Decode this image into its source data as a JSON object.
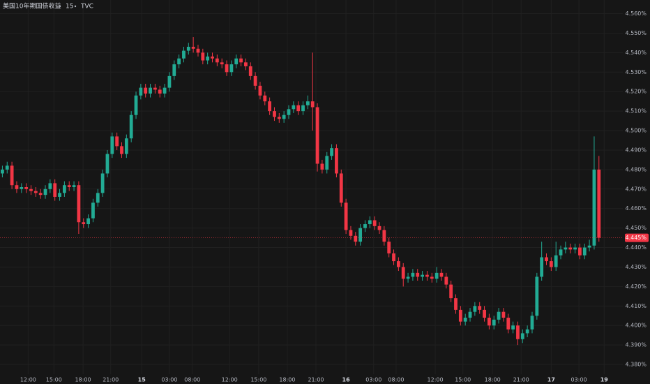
{
  "chart_data": {
    "type": "candlestick",
    "title": "美国10年期国债收益",
    "interval": "15",
    "source": "TVC",
    "up_color": "#22ab94",
    "down_color": "#f23645",
    "grid": true,
    "xlim": [
      -0.5,
      130
    ],
    "ylim": [
      4.375,
      4.567
    ],
    "xticks": [
      {
        "value": 5.4,
        "label": "12:00"
      },
      {
        "value": 10.8,
        "label": "15:00"
      },
      {
        "value": 16.9,
        "label": "18:00"
      },
      {
        "value": 22.7,
        "label": "21:00"
      },
      {
        "value": 29.2,
        "label": "15"
      },
      {
        "value": 35.0,
        "label": "03:00"
      },
      {
        "value": 39.8,
        "label": "08:00"
      },
      {
        "value": 47.6,
        "label": "12:00"
      },
      {
        "value": 53.7,
        "label": "15:00"
      },
      {
        "value": 59.7,
        "label": "18:00"
      },
      {
        "value": 65.7,
        "label": "21:00"
      },
      {
        "value": 72.0,
        "label": "16"
      },
      {
        "value": 77.8,
        "label": "03:00"
      },
      {
        "value": 82.5,
        "label": "08:00"
      },
      {
        "value": 90.7,
        "label": "12:00"
      },
      {
        "value": 96.5,
        "label": "15:00"
      },
      {
        "value": 102.7,
        "label": "18:00"
      },
      {
        "value": 108.7,
        "label": "21:00"
      },
      {
        "value": 115.0,
        "label": "17"
      },
      {
        "value": 120.8,
        "label": "03:00"
      },
      {
        "value": 126.1,
        "label": "19"
      }
    ],
    "day_ticks": [
      "15",
      "16",
      "17",
      "19"
    ],
    "yticks": [
      {
        "value": 4.38,
        "label": "4.380%"
      },
      {
        "value": 4.39,
        "label": "4.390%"
      },
      {
        "value": 4.4,
        "label": "4.400%"
      },
      {
        "value": 4.41,
        "label": "4.410%"
      },
      {
        "value": 4.42,
        "label": "4.420%"
      },
      {
        "value": 4.43,
        "label": "4.430%"
      },
      {
        "value": 4.44,
        "label": "4.440%"
      },
      {
        "value": 4.45,
        "label": "4.450%"
      },
      {
        "value": 4.46,
        "label": "4.460%"
      },
      {
        "value": 4.47,
        "label": "4.470%"
      },
      {
        "value": 4.48,
        "label": "4.480%"
      },
      {
        "value": 4.49,
        "label": "4.490%"
      },
      {
        "value": 4.5,
        "label": "4.500%"
      },
      {
        "value": 4.51,
        "label": "4.510%"
      },
      {
        "value": 4.52,
        "label": "4.520%"
      },
      {
        "value": 4.53,
        "label": "4.530%"
      },
      {
        "value": 4.54,
        "label": "4.540%"
      },
      {
        "value": 4.55,
        "label": "4.550%"
      },
      {
        "value": 4.56,
        "label": "4.560%"
      }
    ],
    "last_price": {
      "value": 4.445,
      "label": "4.445%"
    },
    "open": [
      4.478,
      4.48,
      4.482,
      4.472,
      4.47,
      4.471,
      4.47,
      4.469,
      4.468,
      4.467,
      4.47,
      4.473,
      4.466,
      4.468,
      4.472,
      4.471,
      4.472,
      4.453,
      4.452,
      4.455,
      4.463,
      4.468,
      4.478,
      4.488,
      4.497,
      4.492,
      4.488,
      4.496,
      4.508,
      4.518,
      4.522,
      4.519,
      4.522,
      4.521,
      4.519,
      4.522,
      4.528,
      4.534,
      4.537,
      4.541,
      4.543,
      4.542,
      4.54,
      4.536,
      4.538,
      4.537,
      4.535,
      4.534,
      4.53,
      4.534,
      4.537,
      4.535,
      4.533,
      4.528,
      4.523,
      4.518,
      4.515,
      4.51,
      4.507,
      4.506,
      4.508,
      4.511,
      4.513,
      4.51,
      4.513,
      4.515,
      4.512,
      4.483,
      4.48,
      4.487,
      4.491,
      4.478,
      4.463,
      4.449,
      4.446,
      4.443,
      4.45,
      4.452,
      4.454,
      4.451,
      4.449,
      4.443,
      4.437,
      4.433,
      4.43,
      4.424,
      4.425,
      4.427,
      4.425,
      4.426,
      4.425,
      4.424,
      4.427,
      4.425,
      4.421,
      4.414,
      4.408,
      4.402,
      4.404,
      4.407,
      4.41,
      4.408,
      4.404,
      4.4,
      4.403,
      4.407,
      4.404,
      4.398,
      4.4,
      4.393,
      4.396,
      4.398,
      4.405,
      4.425,
      4.435,
      4.433,
      4.43,
      4.436,
      4.439,
      4.44,
      4.439,
      4.44,
      4.436,
      4.44,
      4.441,
      4.48
    ],
    "high": [
      4.482,
      4.484,
      4.484,
      4.474,
      4.473,
      4.473,
      4.472,
      4.471,
      4.47,
      4.472,
      4.475,
      4.475,
      4.47,
      4.474,
      4.474,
      4.474,
      4.474,
      4.455,
      4.457,
      4.465,
      4.47,
      4.48,
      4.49,
      4.499,
      4.499,
      4.494,
      4.498,
      4.51,
      4.52,
      4.524,
      4.524,
      4.524,
      4.524,
      4.523,
      4.524,
      4.53,
      4.536,
      4.539,
      4.543,
      4.545,
      4.548,
      4.544,
      4.542,
      4.54,
      4.54,
      4.539,
      4.537,
      4.536,
      4.536,
      4.539,
      4.539,
      4.537,
      4.535,
      4.53,
      4.525,
      4.52,
      4.517,
      4.512,
      4.509,
      4.51,
      4.513,
      4.515,
      4.515,
      4.515,
      4.518,
      4.54,
      4.514,
      4.485,
      4.489,
      4.493,
      4.493,
      4.48,
      4.465,
      4.451,
      4.448,
      4.452,
      4.454,
      4.456,
      4.456,
      4.453,
      4.451,
      4.445,
      4.439,
      4.435,
      4.432,
      4.427,
      4.429,
      4.429,
      4.428,
      4.428,
      4.427,
      4.43,
      4.429,
      4.427,
      4.423,
      4.416,
      4.41,
      4.406,
      4.409,
      4.412,
      4.412,
      4.41,
      4.406,
      4.405,
      4.409,
      4.409,
      4.406,
      4.402,
      4.402,
      4.398,
      4.4,
      4.407,
      4.427,
      4.443,
      4.437,
      4.435,
      4.443,
      4.441,
      4.443,
      4.442,
      4.442,
      4.442,
      4.442,
      4.444,
      4.497,
      4.487
    ],
    "low": [
      4.476,
      4.478,
      4.47,
      4.468,
      4.468,
      4.468,
      4.467,
      4.466,
      4.465,
      4.465,
      4.468,
      4.464,
      4.464,
      4.466,
      4.469,
      4.469,
      4.447,
      4.45,
      4.45,
      4.453,
      4.461,
      4.466,
      4.476,
      4.486,
      4.49,
      4.486,
      4.486,
      4.494,
      4.506,
      4.516,
      4.517,
      4.517,
      4.519,
      4.517,
      4.517,
      4.52,
      4.526,
      4.532,
      4.535,
      4.539,
      4.54,
      4.538,
      4.534,
      4.534,
      4.535,
      4.533,
      4.532,
      4.528,
      4.528,
      4.532,
      4.533,
      4.531,
      4.526,
      4.521,
      4.516,
      4.513,
      4.508,
      4.505,
      4.504,
      4.504,
      4.506,
      4.509,
      4.508,
      4.508,
      4.511,
      4.5,
      4.479,
      4.478,
      4.478,
      4.485,
      4.476,
      4.461,
      4.447,
      4.444,
      4.441,
      4.441,
      4.448,
      4.45,
      4.449,
      4.447,
      4.441,
      4.435,
      4.431,
      4.428,
      4.42,
      4.422,
      4.423,
      4.423,
      4.423,
      4.423,
      4.422,
      4.422,
      4.423,
      4.419,
      4.412,
      4.406,
      4.4,
      4.4,
      4.402,
      4.405,
      4.406,
      4.402,
      4.398,
      4.398,
      4.401,
      4.402,
      4.396,
      4.396,
      4.39,
      4.391,
      4.394,
      4.396,
      4.403,
      4.423,
      4.431,
      4.428,
      4.428,
      4.434,
      4.437,
      4.437,
      4.437,
      4.434,
      4.434,
      4.438,
      4.439,
      4.443
    ],
    "close": [
      4.48,
      4.482,
      4.472,
      4.47,
      4.471,
      4.47,
      4.469,
      4.468,
      4.467,
      4.47,
      4.473,
      4.466,
      4.468,
      4.472,
      4.471,
      4.472,
      4.453,
      4.452,
      4.455,
      4.463,
      4.468,
      4.478,
      4.488,
      4.497,
      4.492,
      4.488,
      4.496,
      4.508,
      4.518,
      4.522,
      4.519,
      4.522,
      4.521,
      4.519,
      4.522,
      4.528,
      4.534,
      4.537,
      4.541,
      4.543,
      4.542,
      4.54,
      4.536,
      4.538,
      4.537,
      4.535,
      4.534,
      4.53,
      4.534,
      4.537,
      4.535,
      4.533,
      4.528,
      4.523,
      4.518,
      4.515,
      4.51,
      4.507,
      4.506,
      4.508,
      4.511,
      4.513,
      4.51,
      4.513,
      4.515,
      4.512,
      4.483,
      4.48,
      4.487,
      4.491,
      4.478,
      4.463,
      4.449,
      4.446,
      4.443,
      4.45,
      4.452,
      4.454,
      4.451,
      4.449,
      4.443,
      4.437,
      4.433,
      4.43,
      4.424,
      4.425,
      4.427,
      4.425,
      4.426,
      4.425,
      4.424,
      4.427,
      4.425,
      4.421,
      4.414,
      4.408,
      4.402,
      4.404,
      4.407,
      4.41,
      4.408,
      4.404,
      4.4,
      4.403,
      4.407,
      4.404,
      4.398,
      4.4,
      4.393,
      4.396,
      4.398,
      4.405,
      4.425,
      4.435,
      4.433,
      4.43,
      4.436,
      4.439,
      4.44,
      4.439,
      4.44,
      4.436,
      4.44,
      4.441,
      4.48,
      4.445
    ]
  }
}
